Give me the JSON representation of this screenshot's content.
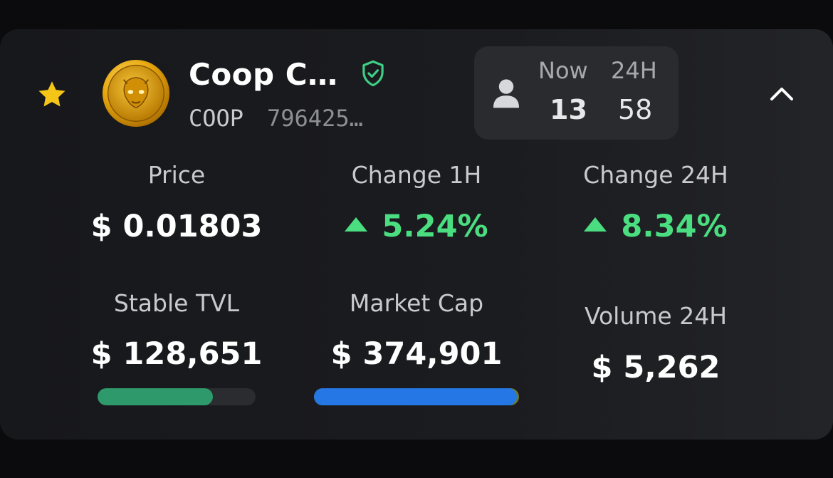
{
  "header": {
    "favorite_icon": "star-icon",
    "token_icon": "coin-logo",
    "name": "Coop C…",
    "verified_icon": "shield-check-icon",
    "ticker": "COOP",
    "address": "796425…",
    "collapse_icon": "chevron-up-icon"
  },
  "holders": {
    "icon": "person-icon",
    "now_label": "Now",
    "now_value": "13",
    "day_label": "24H",
    "day_value": "58"
  },
  "stats": {
    "price": {
      "label": "Price",
      "value": "$ 0.01803"
    },
    "change_1h": {
      "label": "Change 1H",
      "value": "5.24%",
      "direction": "up"
    },
    "change_24h": {
      "label": "Change 24H",
      "value": "8.34%",
      "direction": "up"
    },
    "stable_tvl": {
      "label": "Stable TVL",
      "value": "$ 128,651",
      "bar_fraction": 0.73,
      "bar_color": "#2e9a6b"
    },
    "market_cap": {
      "label": "Market Cap",
      "value": "$ 374,901",
      "bar_fraction": 0.99,
      "bar_color": "#2477e4"
    },
    "volume_24h": {
      "label": "Volume 24H",
      "value": "$ 5,262"
    }
  },
  "colors": {
    "accent_green": "#4ade80",
    "star": "#f5c518",
    "verified": "#3fcf86"
  }
}
